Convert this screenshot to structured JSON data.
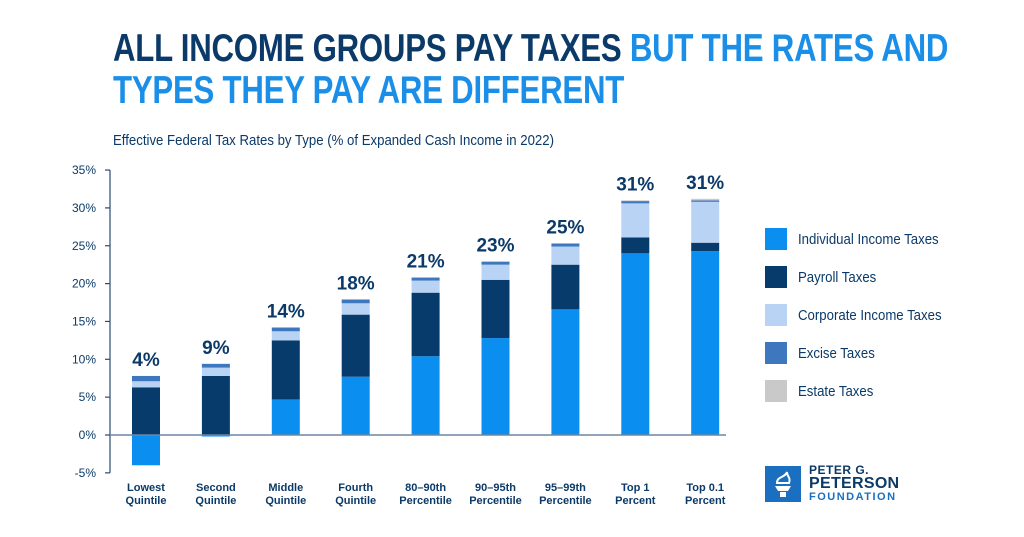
{
  "title": {
    "dark": "ALL INCOME GROUPS PAY TAXES",
    "blue_line1": "BUT THE RATES AND",
    "blue_line2": "TYPES THEY PAY ARE DIFFERENT"
  },
  "logo": {
    "line1": "PETER G.",
    "line2": "PETERSON",
    "line3": "FOUNDATION"
  },
  "chart_data": {
    "type": "bar",
    "stacked": true,
    "title": "Effective Federal Tax Rates by Type (% of Expanded Cash Income in 2022)",
    "xlabel": "",
    "ylabel": "",
    "ylim": [
      -5,
      35
    ],
    "yticks": [
      "-5%",
      "0%",
      "5%",
      "10%",
      "15%",
      "20%",
      "25%",
      "30%",
      "35%"
    ],
    "ytick_values": [
      -5,
      0,
      5,
      10,
      15,
      20,
      25,
      30,
      35
    ],
    "grid": false,
    "legend_position": "right",
    "categories": [
      [
        "Lowest",
        "Quintile"
      ],
      [
        "Second",
        "Quintile"
      ],
      [
        "Middle",
        "Quintile"
      ],
      [
        "Fourth",
        "Quintile"
      ],
      [
        "80–90th",
        "Percentile"
      ],
      [
        "90–95th",
        "Percentile"
      ],
      [
        "95–99th",
        "Percentile"
      ],
      [
        "Top 1",
        "Percent"
      ],
      [
        "Top 0.1",
        "Percent"
      ]
    ],
    "totals": [
      "4%",
      "9%",
      "14%",
      "18%",
      "21%",
      "23%",
      "25%",
      "31%",
      "31%"
    ],
    "series": [
      {
        "name": "Individual Income Taxes",
        "color": "#0a8ff0",
        "values": [
          -4.0,
          -0.2,
          4.7,
          7.7,
          10.4,
          12.8,
          16.6,
          24.0,
          24.3
        ]
      },
      {
        "name": "Payroll Taxes",
        "color": "#063b6c",
        "values": [
          6.3,
          7.8,
          7.8,
          8.2,
          8.4,
          7.7,
          5.9,
          2.1,
          1.1
        ]
      },
      {
        "name": "Corporate Income Taxes",
        "color": "#b8d3f4",
        "values": [
          0.8,
          1.1,
          1.2,
          1.5,
          1.6,
          2.0,
          2.4,
          4.5,
          5.4
        ]
      },
      {
        "name": "Excise Taxes",
        "color": "#3e77bd",
        "values": [
          0.7,
          0.5,
          0.5,
          0.5,
          0.4,
          0.4,
          0.4,
          0.3,
          0.2
        ]
      },
      {
        "name": "Estate Taxes",
        "color": "#c9c9c9",
        "values": [
          0,
          0,
          0,
          0,
          0,
          0,
          0,
          0.1,
          0.2
        ]
      }
    ]
  }
}
